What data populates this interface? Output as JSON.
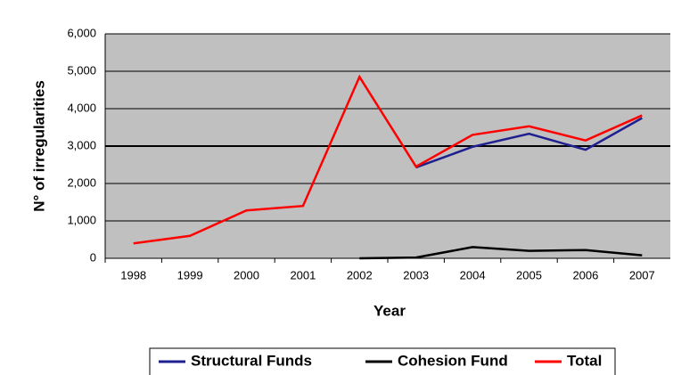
{
  "chart_data": {
    "type": "line",
    "x_label": "Year",
    "y_label": "N° of irregularities",
    "categories": [
      "1998",
      "1999",
      "2000",
      "2001",
      "2002",
      "2003",
      "2004",
      "2005",
      "2006",
      "2007"
    ],
    "series": [
      {
        "name": "Structural Funds",
        "color": "#1f1f8f",
        "values": [
          null,
          null,
          null,
          null,
          null,
          2430,
          2980,
          3330,
          2900,
          3750
        ]
      },
      {
        "name": "Cohesion Fund",
        "color": "#000000",
        "values": [
          null,
          null,
          null,
          null,
          0,
          20,
          300,
          200,
          220,
          80
        ]
      },
      {
        "name": "Total",
        "color": "#ff0000",
        "values": [
          400,
          600,
          1280,
          1400,
          4850,
          2450,
          3300,
          3530,
          3150,
          3820
        ]
      }
    ],
    "ylim": [
      0,
      6000
    ],
    "yticks": [
      0,
      {
        "value": 1000,
        "label": "1,000"
      },
      {
        "value": 2000,
        "label": "2,000"
      },
      {
        "value": 3000,
        "label": "3,000"
      },
      {
        "value": 4000,
        "label": "4,000"
      },
      {
        "value": 5000,
        "label": "5,000"
      },
      {
        "value": 6000,
        "label": "6,000"
      }
    ],
    "grid": true,
    "legend": "bottom"
  }
}
